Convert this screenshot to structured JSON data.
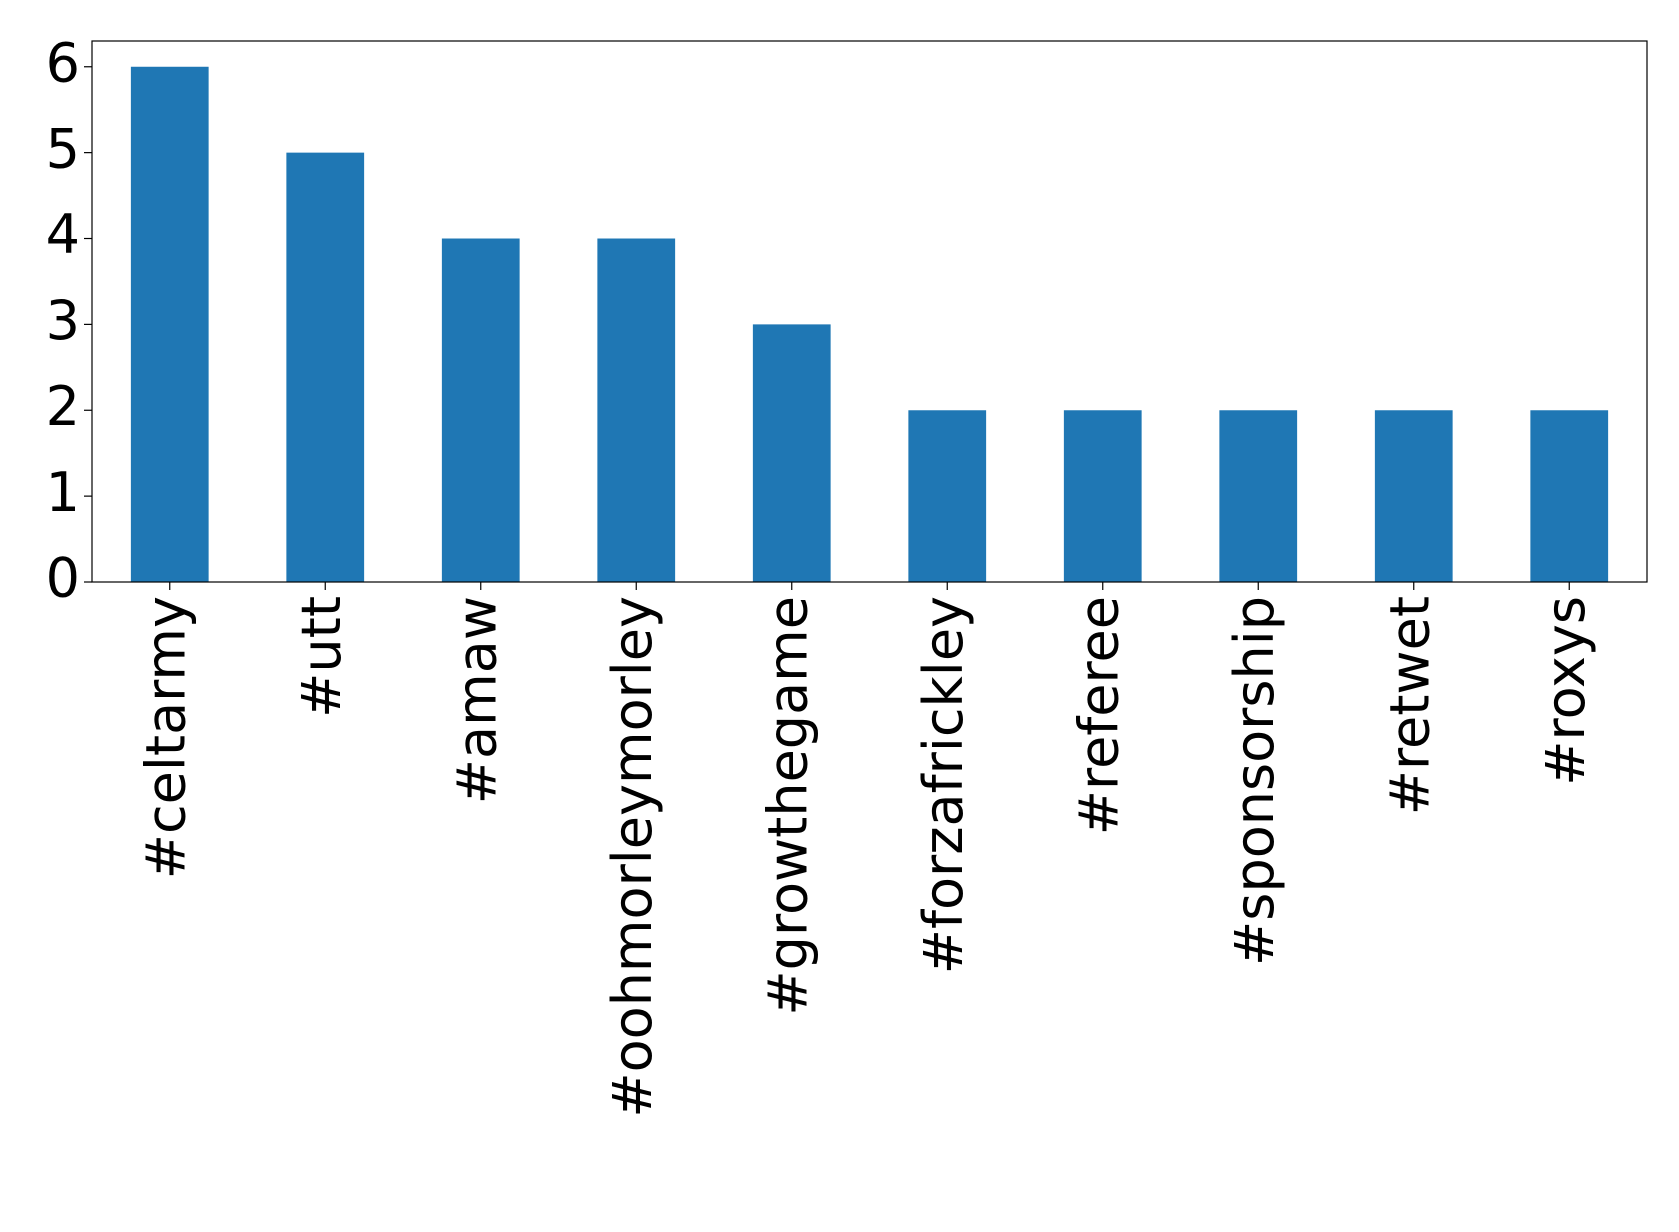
{
  "chart_data": {
    "type": "bar",
    "categories": [
      "#celtarmy",
      "#utt",
      "#amaw",
      "#oohmorleymorley",
      "#growthegame",
      "#forzafrickley",
      "#referee",
      "#sponsorship",
      "#retwet",
      "#roxys"
    ],
    "values": [
      6,
      5,
      4,
      4,
      3,
      2,
      2,
      2,
      2,
      2
    ],
    "color": "#1f77b4",
    "ylim": [
      0,
      6.3
    ],
    "yticks": [
      0,
      1,
      2,
      3,
      4,
      5,
      6
    ],
    "grid": false
  }
}
